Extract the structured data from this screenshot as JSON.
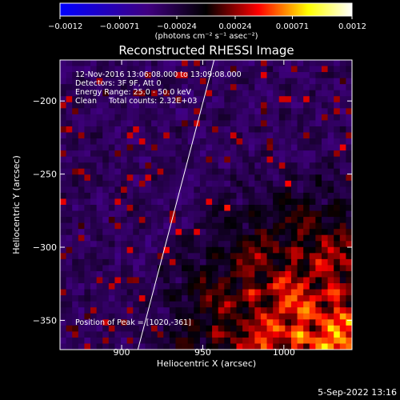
{
  "chart_data": {
    "type": "heatmap",
    "title": "Reconstructed RHESSI Image",
    "xlabel": "Heliocentric X (arcsec)",
    "ylabel": "Heliocentric Y (arcsec)",
    "xlim": [
      862,
      1042
    ],
    "ylim": [
      -370,
      -172
    ],
    "x_ticks": [
      900,
      950,
      1000
    ],
    "y_ticks": [
      -200,
      -250,
      -300,
      -350
    ],
    "x_tick_labels": [
      "900",
      "950",
      "1000"
    ],
    "y_tick_labels": [
      "−200",
      "−250",
      "−300",
      "−350"
    ],
    "colorbar": {
      "range": [
        -0.0012,
        0.0012
      ],
      "ticks": [
        -0.0012,
        -0.00071,
        -0.00024,
        0.00024,
        0.00071,
        0.0012
      ],
      "tick_labels": [
        "−0.0012",
        "−0.00071",
        "−0.00024",
        "0.00024",
        "0.00071",
        "0.0012"
      ],
      "unit_label": "(photons cm⁻² s⁻¹ asec⁻²)",
      "colors": [
        "#0000ff",
        "#400080",
        "#000000",
        "#ff0000",
        "#ffff00",
        "#ffffff"
      ]
    },
    "annotations": [
      "12-Nov-2016 13:06:08.000 to 13:09:08.000",
      "Detectors: 3F 9F, Att 0",
      "Energy Range: 25.0 - 50.0 keV",
      "Clean     Total counts: 2.32E+03"
    ],
    "peak_label": "Position of Peak = [1020,-361]",
    "peak_position": [
      1020,
      -361
    ],
    "limb_line": [
      [
        910,
        -370
      ],
      [
        957,
        -172
      ]
    ],
    "grid": false
  },
  "footer": {
    "date": "5-Sep-2022 13:16"
  }
}
